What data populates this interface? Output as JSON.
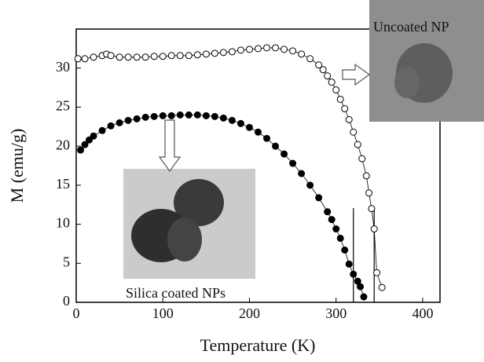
{
  "chart_data": {
    "type": "scatter",
    "xlabel": "Temperature (K)",
    "ylabel": "M (emu/g)",
    "xlim": [
      0,
      420
    ],
    "ylim": [
      0,
      35
    ],
    "xticks": [
      0,
      100,
      200,
      300,
      400
    ],
    "yticks": [
      0,
      5,
      10,
      15,
      20,
      25,
      30
    ],
    "annotations": [
      "Uncoated NP",
      "Silica coated NPs"
    ],
    "vlines": [
      320,
      344
    ],
    "series": [
      {
        "color": "#000000",
        "filled": false,
        "x": [
          2,
          10,
          20,
          30,
          35,
          40,
          50,
          60,
          70,
          80,
          90,
          100,
          110,
          120,
          130,
          140,
          150,
          160,
          170,
          180,
          190,
          200,
          210,
          220,
          230,
          240,
          250,
          260,
          270,
          280,
          285,
          290,
          295,
          300,
          305,
          310,
          315,
          320,
          325,
          330,
          335,
          338,
          341,
          344,
          347,
          353
        ],
        "values": [
          31.2,
          31.2,
          31.4,
          31.6,
          31.8,
          31.6,
          31.4,
          31.4,
          31.4,
          31.4,
          31.5,
          31.5,
          31.6,
          31.6,
          31.6,
          31.7,
          31.8,
          31.9,
          32.0,
          32.1,
          32.3,
          32.4,
          32.5,
          32.6,
          32.6,
          32.4,
          32.2,
          31.8,
          31.2,
          30.4,
          29.8,
          29.0,
          28.2,
          27.2,
          26.0,
          24.8,
          23.4,
          21.8,
          20.2,
          18.4,
          16.2,
          14.0,
          12.0,
          9.4,
          3.8,
          1.9
        ]
      },
      {
        "color": "#000000",
        "filled": true,
        "x": [
          5,
          10,
          15,
          20,
          30,
          40,
          50,
          60,
          70,
          80,
          90,
          100,
          110,
          120,
          130,
          140,
          150,
          160,
          170,
          180,
          190,
          200,
          210,
          220,
          230,
          240,
          250,
          260,
          270,
          280,
          290,
          295,
          300,
          305,
          310,
          315,
          320,
          325,
          328,
          332
        ],
        "values": [
          19.5,
          20.2,
          20.8,
          21.3,
          22.0,
          22.6,
          23.0,
          23.3,
          23.5,
          23.7,
          23.8,
          23.9,
          23.9,
          24.0,
          24.0,
          24.0,
          23.9,
          23.8,
          23.6,
          23.3,
          22.9,
          22.4,
          21.8,
          21.0,
          20.0,
          19.0,
          17.8,
          16.5,
          15.0,
          13.4,
          11.6,
          10.6,
          9.4,
          8.2,
          6.7,
          4.9,
          3.6,
          2.7,
          2.0,
          0.7
        ]
      }
    ]
  }
}
